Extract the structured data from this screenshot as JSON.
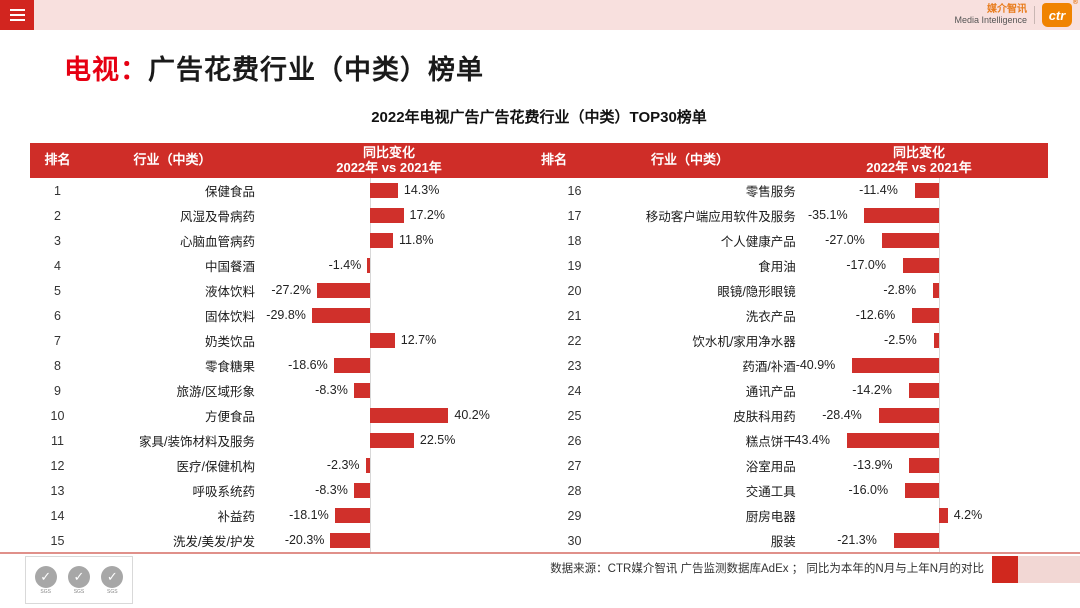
{
  "topbar": {
    "brand_cn": "媒介智讯",
    "brand_en": "Media Intelligence",
    "logo_text": "ctr",
    "registered_mark": "®"
  },
  "header": {
    "title_prefix": "电视：",
    "title_rest": "广告花费行业（中类）榜单",
    "subtitle": "2022年电视广告广告花费行业（中类）TOP30榜单"
  },
  "table": {
    "columns": {
      "rank": "排名",
      "industry": "行业（中类）",
      "change_line1": "同比变化",
      "change_line2": "2022年 vs 2021年"
    }
  },
  "left_rows": [
    {
      "rank": "1",
      "industry": "保健食品",
      "value": 14.3,
      "label": "14.3%"
    },
    {
      "rank": "2",
      "industry": "风湿及骨病药",
      "value": 17.2,
      "label": "17.2%"
    },
    {
      "rank": "3",
      "industry": "心脑血管病药",
      "value": 11.8,
      "label": "11.8%"
    },
    {
      "rank": "4",
      "industry": "中国餐酒",
      "value": -1.4,
      "label": "-1.4%"
    },
    {
      "rank": "5",
      "industry": "液体饮料",
      "value": -27.2,
      "label": "-27.2%"
    },
    {
      "rank": "6",
      "industry": "固体饮料",
      "value": -29.8,
      "label": "-29.8%"
    },
    {
      "rank": "7",
      "industry": "奶类饮品",
      "value": 12.7,
      "label": "12.7%"
    },
    {
      "rank": "8",
      "industry": "零食糖果",
      "value": -18.6,
      "label": "-18.6%"
    },
    {
      "rank": "9",
      "industry": "旅游/区域形象",
      "value": -8.3,
      "label": "-8.3%"
    },
    {
      "rank": "10",
      "industry": "方便食品",
      "value": 40.2,
      "label": "40.2%"
    },
    {
      "rank": "11",
      "industry": "家具/装饰材料及服务",
      "value": 22.5,
      "label": "22.5%"
    },
    {
      "rank": "12",
      "industry": "医疗/保健机构",
      "value": -2.3,
      "label": "-2.3%"
    },
    {
      "rank": "13",
      "industry": "呼吸系统药",
      "value": -8.3,
      "label": "-8.3%"
    },
    {
      "rank": "14",
      "industry": "补益药",
      "value": -18.1,
      "label": "-18.1%"
    },
    {
      "rank": "15",
      "industry": "洗发/美发/护发",
      "value": -20.3,
      "label": "-20.3%"
    }
  ],
  "right_rows": [
    {
      "rank": "16",
      "industry": "零售服务",
      "value": -11.4,
      "label": "-11.4%"
    },
    {
      "rank": "17",
      "industry": "移动客户端应用软件及服务",
      "value": -35.1,
      "label": "-35.1%"
    },
    {
      "rank": "18",
      "industry": "个人健康产品",
      "value": -27.0,
      "label": "-27.0%"
    },
    {
      "rank": "19",
      "industry": "食用油",
      "value": -17.0,
      "label": "-17.0%"
    },
    {
      "rank": "20",
      "industry": "眼镜/隐形眼镜",
      "value": -2.8,
      "label": "-2.8%"
    },
    {
      "rank": "21",
      "industry": "洗衣产品",
      "value": -12.6,
      "label": "-12.6%"
    },
    {
      "rank": "22",
      "industry": "饮水机/家用净水器",
      "value": -2.5,
      "label": "-2.5%"
    },
    {
      "rank": "23",
      "industry": "药酒/补酒",
      "value": -40.9,
      "label": "-40.9%"
    },
    {
      "rank": "24",
      "industry": "通讯产品",
      "value": -14.2,
      "label": "-14.2%"
    },
    {
      "rank": "25",
      "industry": "皮肤科用药",
      "value": -28.4,
      "label": "-28.4%"
    },
    {
      "rank": "26",
      "industry": "糕点饼干",
      "value": -43.4,
      "label": "-43.4%"
    },
    {
      "rank": "27",
      "industry": "浴室用品",
      "value": -13.9,
      "label": "-13.9%"
    },
    {
      "rank": "28",
      "industry": "交通工具",
      "value": -16.0,
      "label": "-16.0%"
    },
    {
      "rank": "29",
      "industry": "厨房电器",
      "value": 4.2,
      "label": "4.2%"
    },
    {
      "rank": "30",
      "industry": "服装",
      "value": -21.3,
      "label": "-21.3%"
    }
  ],
  "footer": {
    "source": "数据来源：CTR媒介智讯 广告监测数据库AdEx ；  同比为本年的N月与上年N月的对比",
    "sgs_label": "SGS"
  },
  "colors": {
    "accent_red": "#d0302b",
    "header_red": "#cf2d28",
    "title_red": "#e60012",
    "topbar_pink": "#f8e0de",
    "brand_orange": "#f08300"
  },
  "chart_data": {
    "type": "bar",
    "orientation": "horizontal",
    "title": "2022年电视广告广告花费行业（中类）TOP30榜单",
    "ylabel": "同比变化 2022年 vs 2021年",
    "unit": "%",
    "bar_color": "#d0302b",
    "ranks": [
      1,
      2,
      3,
      4,
      5,
      6,
      7,
      8,
      9,
      10,
      11,
      12,
      13,
      14,
      15,
      16,
      17,
      18,
      19,
      20,
      21,
      22,
      23,
      24,
      25,
      26,
      27,
      28,
      29,
      30
    ],
    "categories": [
      "保健食品",
      "风湿及骨病药",
      "心脑血管病药",
      "中国餐酒",
      "液体饮料",
      "固体饮料",
      "奶类饮品",
      "零食糖果",
      "旅游/区域形象",
      "方便食品",
      "家具/装饰材料及服务",
      "医疗/保健机构",
      "呼吸系统药",
      "补益药",
      "洗发/美发/护发",
      "零售服务",
      "移动客户端应用软件及服务",
      "个人健康产品",
      "食用油",
      "眼镜/隐形眼镜",
      "洗衣产品",
      "饮水机/家用净水器",
      "药酒/补酒",
      "通讯产品",
      "皮肤科用药",
      "糕点饼干",
      "浴室用品",
      "交通工具",
      "厨房电器",
      "服装"
    ],
    "values": [
      14.3,
      17.2,
      11.8,
      -1.4,
      -27.2,
      -29.8,
      12.7,
      -18.6,
      -8.3,
      40.2,
      22.5,
      -2.3,
      -8.3,
      -18.1,
      -20.3,
      -11.4,
      -35.1,
      -27.0,
      -17.0,
      -2.8,
      -12.6,
      -2.5,
      -40.9,
      -14.2,
      -28.4,
      -43.4,
      -13.9,
      -16.0,
      4.2,
      -21.3
    ]
  }
}
